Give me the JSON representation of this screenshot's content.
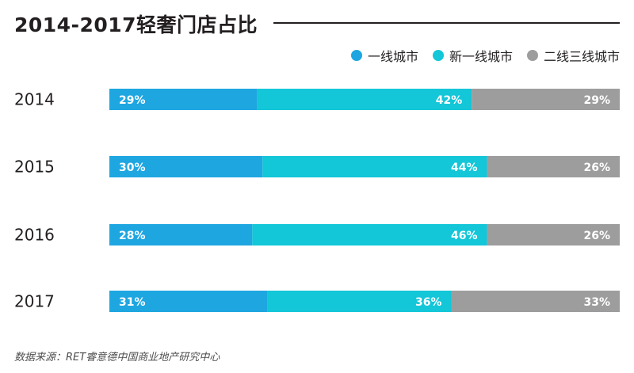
{
  "title": "2014-2017轻奢门店占比",
  "source": "数据来源：RET睿意德中国商业地产研究中心",
  "colors": {
    "series1": "#1ea6e1",
    "series2": "#13c6d8",
    "series3": "#9d9d9e"
  },
  "chart_data": {
    "type": "bar",
    "orientation": "horizontal",
    "stacked": true,
    "normalized": true,
    "title": "2014-2017轻奢门店占比",
    "categories": [
      "2014",
      "2015",
      "2016",
      "2017"
    ],
    "series": [
      {
        "name": "一线城市",
        "values": [
          29,
          30,
          28,
          31
        ],
        "labels": [
          "29%",
          "30%",
          "28%",
          "31%"
        ]
      },
      {
        "name": "新一线城市",
        "values": [
          42,
          44,
          46,
          36
        ],
        "labels": [
          "42%",
          "44%",
          "46%",
          "36%"
        ]
      },
      {
        "name": "二线三线城市",
        "values": [
          29,
          26,
          26,
          33
        ],
        "labels": [
          "29%",
          "26%",
          "26%",
          "33%"
        ]
      }
    ],
    "legend_position": "top-right",
    "grid": false
  }
}
